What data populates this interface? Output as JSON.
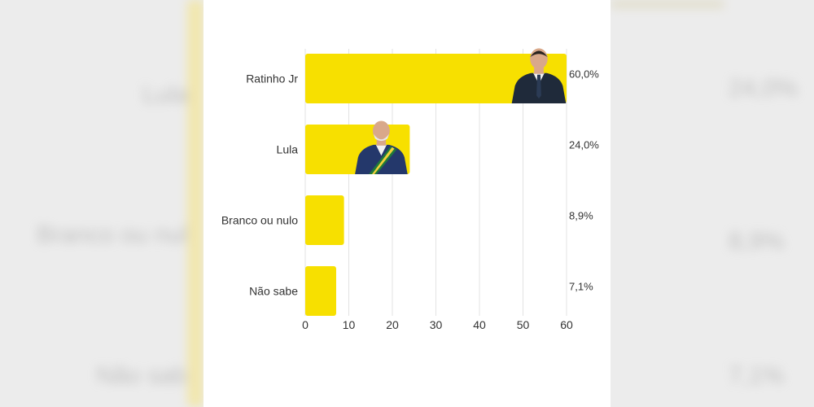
{
  "colors": {
    "bar": "#F7E000",
    "grid": "#e3e3e3",
    "text": "#333333",
    "suit_dark": "#1f2a3a",
    "suit_blue": "#24386b",
    "skin": "#d9a88a",
    "sash_green": "#1f7a3a",
    "sash_yellow": "#f2d23a"
  },
  "chart_data": {
    "type": "bar",
    "orientation": "horizontal",
    "categories": [
      "Ratinho Jr",
      "Lula",
      "Branco ou nulo",
      "Não sabe"
    ],
    "values": [
      60.0,
      24.0,
      8.9,
      7.1
    ],
    "value_labels": [
      "60,0%",
      "24,0%",
      "8,9%",
      "7,1%"
    ],
    "xlim": [
      0,
      60
    ],
    "xticks": [
      0,
      10,
      20,
      30,
      40,
      50,
      60
    ],
    "xtick_labels": [
      "0",
      "10",
      "20",
      "30",
      "40",
      "50",
      "60"
    ],
    "grid": true,
    "photos": [
      {
        "category": "Ratinho Jr",
        "icon": "ratinho-jr-photo-icon"
      },
      {
        "category": "Lula",
        "icon": "lula-photo-icon"
      }
    ]
  }
}
